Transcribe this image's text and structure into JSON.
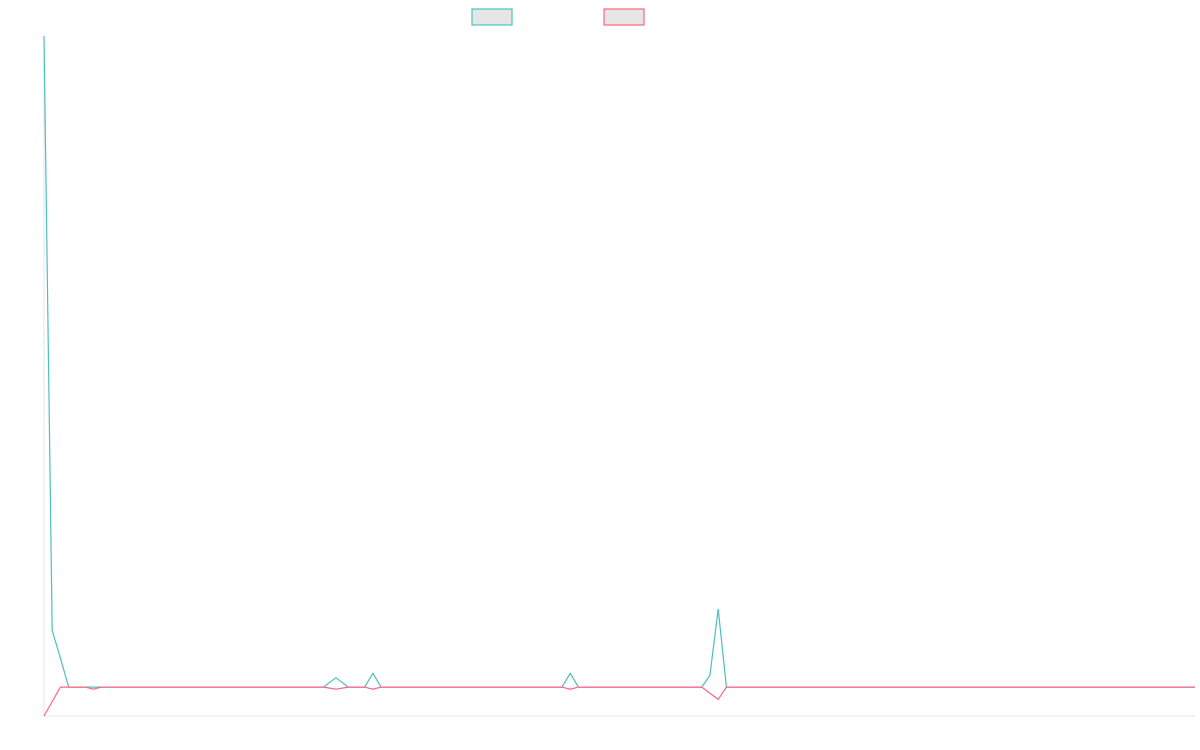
{
  "chart_data": {
    "type": "line",
    "title": "",
    "xlabel": "",
    "ylabel": "",
    "legend_position": "top-center",
    "grid": false,
    "ylim": [
      -2,
      45
    ],
    "xlim": [
      0,
      140
    ],
    "series": [
      {
        "name": "",
        "color": "#4bc0c0",
        "legend_fill": "#e6e6e6",
        "x": [
          0,
          1,
          2,
          3,
          6,
          34,
          35.5,
          37,
          39,
          40,
          41,
          63,
          64,
          65,
          80,
          81,
          82,
          83,
          140
        ],
        "y": [
          46,
          3.9,
          2,
          0,
          0,
          0,
          0.65,
          0,
          0,
          0.95,
          0,
          0,
          0.95,
          0,
          0,
          0.8,
          5.4,
          0,
          0
        ]
      },
      {
        "name": "",
        "color": "#ff6384",
        "legend_fill": "#e6e6e6",
        "x": [
          0,
          2,
          3,
          5,
          6,
          7,
          34,
          35.5,
          37,
          39,
          40,
          41,
          63,
          64,
          65,
          80,
          82,
          83,
          140
        ],
        "y": [
          -2,
          0,
          0,
          0,
          -0.15,
          0,
          0,
          -0.15,
          0,
          0,
          -0.15,
          0,
          0,
          -0.15,
          0,
          0,
          -0.85,
          0,
          0
        ]
      }
    ]
  }
}
